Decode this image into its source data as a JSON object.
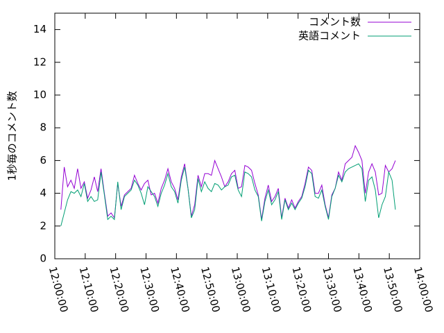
{
  "chart_data": {
    "type": "line",
    "ylabel": "1秒毎のコメント数",
    "x": [
      "12:02:00",
      "12:03:06",
      "12:04:12",
      "12:05:18",
      "12:06:24",
      "12:07:30",
      "12:08:36",
      "12:09:42",
      "12:10:48",
      "12:11:54",
      "12:13:00",
      "12:14:06",
      "12:15:12",
      "12:16:18",
      "12:17:24",
      "12:18:30",
      "12:19:36",
      "12:20:42",
      "12:21:48",
      "12:22:54",
      "12:24:00",
      "12:25:06",
      "12:26:12",
      "12:27:18",
      "12:28:24",
      "12:29:30",
      "12:30:36",
      "12:31:42",
      "12:32:48",
      "12:33:54",
      "12:35:00",
      "12:36:06",
      "12:37:12",
      "12:38:18",
      "12:39:24",
      "12:40:30",
      "12:41:36",
      "12:42:42",
      "12:43:48",
      "12:44:54",
      "12:46:00",
      "12:47:06",
      "12:48:12",
      "12:49:18",
      "12:50:24",
      "12:51:30",
      "12:52:36",
      "12:53:42",
      "12:54:48",
      "12:55:54",
      "12:57:00",
      "12:58:06",
      "12:59:12",
      "13:00:18",
      "13:01:24",
      "13:02:30",
      "13:03:36",
      "13:04:42",
      "13:05:48",
      "13:06:54",
      "13:08:00",
      "13:09:06",
      "13:10:12",
      "13:11:18",
      "13:12:24",
      "13:13:30",
      "13:14:36",
      "13:15:42",
      "13:16:48",
      "13:17:54",
      "13:19:00",
      "13:20:06",
      "13:21:12",
      "13:22:18",
      "13:23:24",
      "13:24:30",
      "13:25:36",
      "13:26:42",
      "13:27:48",
      "13:28:54",
      "13:30:00",
      "13:31:06",
      "13:32:12",
      "13:33:18",
      "13:34:24",
      "13:35:30",
      "13:36:36",
      "13:37:42",
      "13:38:48",
      "13:39:54",
      "13:41:00",
      "13:42:06",
      "13:43:12",
      "13:44:18",
      "13:45:24",
      "13:46:30",
      "13:47:36",
      "13:48:42",
      "13:49:48",
      "13:50:54",
      "13:52:00"
    ],
    "series": [
      {
        "name": "コメント数",
        "color": "#9400d3",
        "values": [
          3.0,
          5.6,
          4.4,
          4.8,
          4.3,
          5.5,
          4.3,
          4.7,
          3.7,
          4.2,
          5.0,
          4.1,
          5.5,
          4.0,
          2.6,
          2.8,
          2.5,
          4.6,
          3.2,
          3.9,
          4.1,
          4.3,
          5.1,
          4.6,
          4.2,
          4.6,
          4.8,
          3.9,
          4.0,
          3.4,
          4.3,
          4.8,
          5.5,
          4.7,
          4.3,
          3.6,
          5.0,
          5.8,
          4.3,
          2.6,
          3.3,
          5.1,
          4.4,
          5.2,
          5.2,
          5.1,
          6.0,
          5.5,
          5.0,
          4.4,
          4.7,
          5.2,
          5.4,
          4.3,
          4.4,
          5.7,
          5.6,
          5.4,
          4.6,
          3.9,
          2.4,
          3.7,
          4.5,
          3.5,
          3.8,
          4.3,
          2.5,
          3.7,
          3.1,
          3.6,
          3.1,
          3.5,
          3.8,
          4.6,
          5.6,
          5.4,
          4.0,
          4.0,
          4.5,
          3.3,
          2.5,
          3.9,
          4.3,
          5.3,
          4.8,
          5.8,
          6.0,
          6.2,
          6.9,
          6.5,
          6.0,
          4.0,
          5.3,
          5.8,
          5.3,
          3.9,
          4.0,
          5.7,
          5.3,
          5.5,
          6.0
        ]
      },
      {
        "name": "英語コメント",
        "color": "#009e73",
        "values": [
          2.0,
          2.8,
          3.6,
          4.1,
          4.0,
          4.2,
          3.8,
          4.6,
          3.5,
          3.8,
          3.5,
          3.6,
          5.3,
          3.9,
          2.4,
          2.6,
          2.4,
          4.7,
          3.0,
          3.8,
          4.0,
          4.2,
          4.8,
          4.5,
          4.0,
          3.3,
          4.4,
          4.1,
          3.8,
          3.2,
          4.0,
          4.5,
          5.2,
          4.4,
          4.1,
          3.4,
          4.8,
          5.6,
          4.3,
          2.5,
          3.0,
          4.9,
          4.1,
          4.7,
          4.3,
          4.1,
          4.6,
          4.5,
          4.2,
          4.4,
          4.5,
          5.0,
          5.1,
          4.2,
          3.8,
          5.3,
          5.2,
          5.0,
          4.2,
          3.8,
          2.3,
          3.5,
          4.2,
          3.3,
          3.6,
          4.1,
          2.4,
          3.6,
          3.0,
          3.4,
          3.0,
          3.4,
          3.7,
          4.4,
          5.4,
          5.2,
          3.8,
          3.7,
          4.2,
          3.2,
          2.4,
          3.8,
          4.3,
          5.1,
          4.7,
          5.3,
          5.5,
          5.6,
          5.7,
          5.8,
          5.5,
          3.5,
          4.8,
          5.0,
          4.2,
          2.5,
          3.3,
          3.8,
          5.3,
          4.8,
          3.0
        ]
      }
    ],
    "xlim": [
      "12:00:00",
      "14:00:00"
    ],
    "xticks": [
      "12:00:00",
      "12:10:00",
      "12:20:00",
      "12:30:00",
      "12:40:00",
      "12:50:00",
      "13:00:00",
      "13:10:00",
      "13:20:00",
      "13:30:00",
      "13:40:00",
      "13:50:00",
      "14:00:00"
    ],
    "ylim": [
      0,
      15
    ],
    "yticks": [
      0,
      2,
      4,
      6,
      8,
      10,
      12,
      14
    ],
    "legend": "top-right",
    "grid": false
  }
}
